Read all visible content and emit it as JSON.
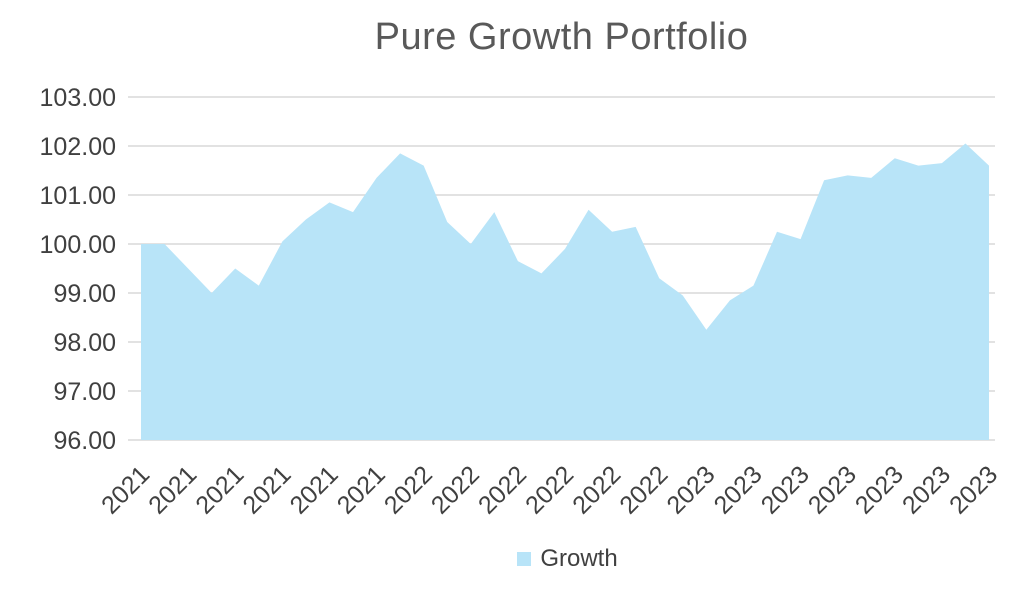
{
  "chart_data": {
    "type": "area",
    "title": "Pure Growth Portfolio",
    "series": [
      {
        "name": "Growth",
        "values": [
          100.0,
          100.0,
          99.5,
          99.0,
          99.5,
          99.15,
          100.05,
          100.5,
          100.85,
          100.65,
          101.35,
          101.85,
          101.6,
          100.45,
          100.0,
          100.65,
          99.65,
          99.4,
          99.9,
          100.7,
          100.25,
          100.35,
          99.3,
          98.95,
          98.25,
          98.85,
          99.15,
          100.25,
          100.1,
          101.3,
          101.4,
          101.35,
          101.75,
          101.6,
          101.65,
          102.05,
          101.6
        ]
      }
    ],
    "x_labels": [
      "2021",
      "2021",
      "2021",
      "2021",
      "2021",
      "2021",
      "2022",
      "2022",
      "2022",
      "2022",
      "2022",
      "2022",
      "2023",
      "2023",
      "2023",
      "2023",
      "2023",
      "2023",
      "2023"
    ],
    "x_label_every_n_points": 2,
    "y_axis": {
      "min": 96,
      "max": 103,
      "step": 1
    },
    "y_tick_labels": [
      "103.00",
      "102.00",
      "101.00",
      "100.00",
      "99.00",
      "98.00",
      "97.00",
      "96.00"
    ],
    "ylim": [
      96,
      103
    ],
    "grid": "horizontal",
    "legend": {
      "position": "bottom",
      "entries": [
        "Growth"
      ]
    },
    "colors": {
      "area_fill": "#B8E4F8",
      "gridline": "#D8D8D8",
      "axis_text": "#404040",
      "title_text": "#595959"
    }
  }
}
